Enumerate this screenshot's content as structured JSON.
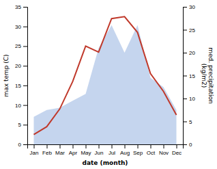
{
  "chart_data": {
    "type": "line",
    "categories": [
      "Jan",
      "Feb",
      "Mar",
      "Apr",
      "May",
      "Jun",
      "Jul",
      "Aug",
      "Sep",
      "Oct",
      "Nov",
      "Dec"
    ],
    "series": [
      {
        "type": "area",
        "color": "#c5d5ee",
        "axis": "y2",
        "values": [
          6.0,
          7.5,
          8.0,
          9.5,
          11.0,
          21.0,
          26.0,
          20.0,
          26.0,
          14.5,
          12.5,
          7.5
        ]
      },
      {
        "type": "line",
        "color": "#c0392b",
        "values": [
          2.5,
          4.5,
          9.0,
          16.0,
          25.0,
          23.5,
          32.0,
          32.5,
          28.5,
          18.0,
          13.5,
          7.5
        ]
      }
    ],
    "xlabel": "date (month)",
    "ylabel": "max temp (C)",
    "y2label": "med. precipitation\n(kg/m2)",
    "ylim": [
      0,
      35
    ],
    "yticks": [
      0,
      5,
      10,
      15,
      20,
      25,
      30,
      35
    ],
    "y2lim": [
      0,
      30
    ],
    "y2ticks": [
      0,
      5,
      10,
      15,
      20,
      25,
      30
    ],
    "grid": false
  }
}
